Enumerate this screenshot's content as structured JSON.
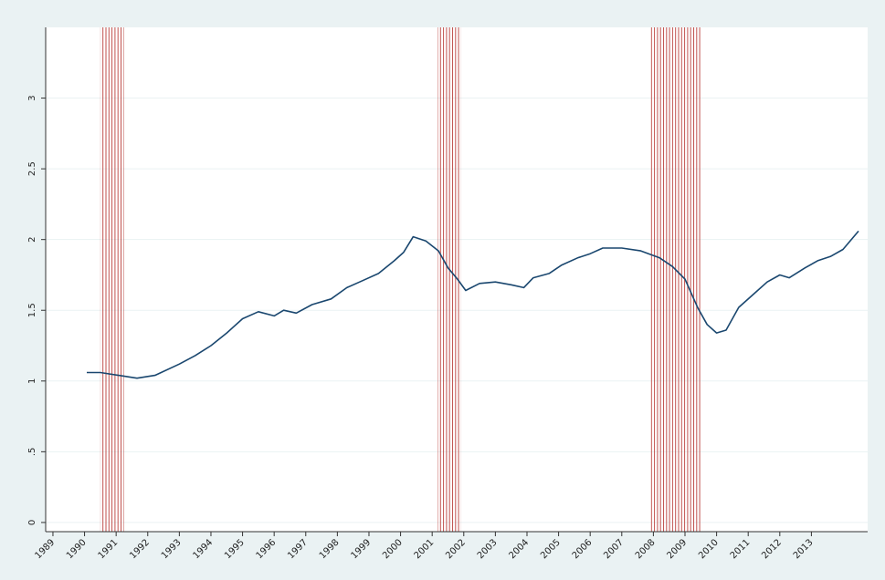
{
  "chart_data": {
    "type": "line",
    "x": [
      1990.07,
      1990.5,
      1991.08,
      1991.66,
      1992.23,
      1993.0,
      1993.5,
      1994.0,
      1994.5,
      1995.0,
      1995.5,
      1996.0,
      1996.3,
      1996.7,
      1997.2,
      1997.8,
      1998.3,
      1998.8,
      1999.3,
      1999.8,
      2000.1,
      2000.4,
      2000.8,
      2001.2,
      2001.5,
      2001.8,
      2002.06,
      2002.5,
      2003.0,
      2003.5,
      2003.9,
      2004.2,
      2004.7,
      2005.1,
      2005.6,
      2006.0,
      2006.4,
      2007.0,
      2007.6,
      2008.2,
      2008.6,
      2009.0,
      2009.4,
      2009.7,
      2010.0,
      2010.3,
      2010.7,
      2011.2,
      2011.6,
      2012.0,
      2012.3,
      2012.8,
      2013.2,
      2013.6,
      2014.0,
      2014.49
    ],
    "series": [
      {
        "color": "#1a476f",
        "values": [
          1.06,
          1.06,
          1.04,
          1.02,
          1.04,
          1.12,
          1.18,
          1.25,
          1.34,
          1.44,
          1.49,
          1.46,
          1.5,
          1.48,
          1.54,
          1.58,
          1.66,
          1.71,
          1.76,
          1.85,
          1.91,
          2.02,
          1.99,
          1.92,
          1.8,
          1.72,
          1.64,
          1.69,
          1.7,
          1.68,
          1.66,
          1.73,
          1.76,
          1.82,
          1.87,
          1.9,
          1.94,
          1.94,
          1.92,
          1.87,
          1.81,
          1.72,
          1.52,
          1.4,
          1.34,
          1.36,
          1.52,
          1.62,
          1.7,
          1.75,
          1.73,
          1.8,
          1.85,
          1.88,
          1.93,
          2.06
        ]
      }
    ],
    "recessions": [
      [
        1990.5,
        1991.25
      ],
      [
        2001.17,
        2001.92
      ],
      [
        2007.92,
        2009.5
      ]
    ],
    "recession_color": "#c0504d",
    "xlim": [
      1988.77,
      2014.78
    ],
    "xticks": [
      1989,
      1990,
      1991,
      1992,
      1993,
      1994,
      1995,
      1996,
      1997,
      1998,
      1999,
      2000,
      2001,
      2002,
      2003,
      2004,
      2005,
      2006,
      2007,
      2008,
      2009,
      2010,
      2011,
      2012,
      2013
    ],
    "ylim": [
      -0.065,
      3.5
    ],
    "yticks": [
      0,
      {
        "value": 0.5,
        "label": ".5"
      },
      1,
      1.5,
      2,
      2.5,
      3
    ],
    "grid": true
  }
}
